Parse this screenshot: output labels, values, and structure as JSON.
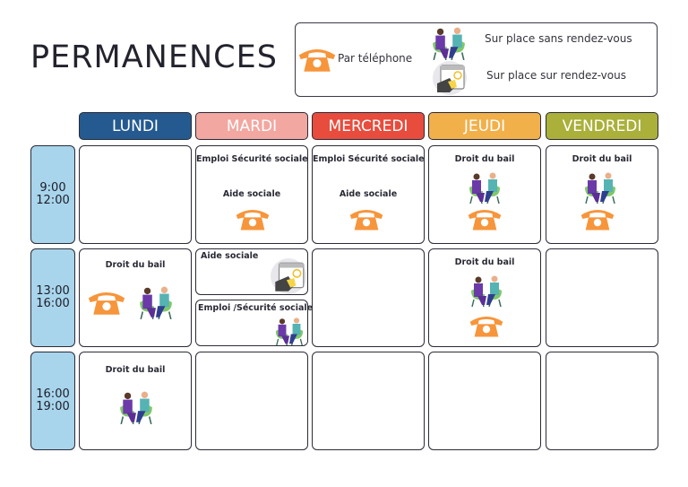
{
  "title": "PERMANENCES",
  "legend": {
    "phone": "Par téléphone",
    "walkin": "Sur place sans rendez-vous",
    "appointment": "Sur place sur rendez-vous"
  },
  "days": [
    {
      "label": "LUNDI",
      "color": "#245a8f"
    },
    {
      "label": "MARDI",
      "color": "#f2a7a0"
    },
    {
      "label": "MERCREDI",
      "color": "#e84c3d"
    },
    {
      "label": "JEUDI",
      "color": "#f2b04a"
    },
    {
      "label": "VENDREDI",
      "color": "#aab03a"
    }
  ],
  "slots": [
    {
      "start": "9:00",
      "end": "12:00"
    },
    {
      "start": "13:00",
      "end": "16:00"
    },
    {
      "start": "16:00",
      "end": "19:00"
    }
  ],
  "cells": {
    "mardi_am": {
      "l1": "Emploi Sécurité sociale",
      "l2": "Aide sociale"
    },
    "mercredi_am": {
      "l1": "Emploi Sécurité sociale",
      "l2": "Aide sociale"
    },
    "jeudi_am": {
      "l1": "Droit du bail"
    },
    "vendredi_am": {
      "l1": "Droit du bail"
    },
    "lundi_pm": {
      "l1": "Droit du bail"
    },
    "mardi_pm": {
      "l1": "Aide sociale",
      "l2": "Emploi /Sécurité sociale"
    },
    "jeudi_pm": {
      "l1": "Droit du bail"
    },
    "lundi_ev": {
      "l1": "Droit du bail"
    }
  },
  "colors": {
    "phone": "#f7953b",
    "time": "#a8d5ec"
  }
}
